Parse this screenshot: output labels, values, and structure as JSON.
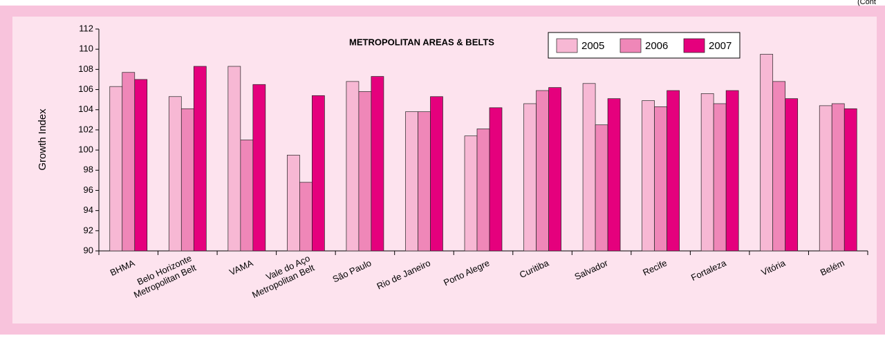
{
  "chart_data": {
    "type": "bar",
    "title": "METROPOLITAN AREAS & BELTS",
    "corner_note": "(Cont",
    "y_label": "Growth Index",
    "categories": [
      [
        "BHMA"
      ],
      [
        "Belo Horizonte",
        "Metropolitan Belt"
      ],
      [
        "VAMA"
      ],
      [
        "Vale do Aço",
        "Metropolitan Belt"
      ],
      [
        "São Paulo"
      ],
      [
        "Rio de Janeiro"
      ],
      [
        "Porto Alegre"
      ],
      [
        "Curitiba"
      ],
      [
        "Salvador"
      ],
      [
        "Recife"
      ],
      [
        "Fortaleza"
      ],
      [
        "Vitória"
      ],
      [
        "Belém"
      ]
    ],
    "series": [
      {
        "name": "2005",
        "color": "#f7b8d4",
        "values": [
          106.3,
          105.3,
          108.3,
          99.5,
          106.8,
          103.8,
          101.4,
          104.6,
          106.6,
          104.9,
          105.6,
          109.5,
          104.4
        ]
      },
      {
        "name": "2006",
        "color": "#ef87b8",
        "values": [
          107.7,
          104.1,
          101.0,
          96.8,
          105.8,
          103.8,
          102.1,
          105.9,
          102.5,
          104.3,
          104.6,
          106.8,
          104.6
        ]
      },
      {
        "name": "2007",
        "color": "#e5007d",
        "values": [
          107.0,
          108.3,
          106.5,
          105.4,
          107.3,
          105.3,
          104.2,
          106.2,
          105.1,
          105.9,
          105.9,
          105.1,
          104.1
        ]
      }
    ],
    "ylim": [
      90,
      112
    ],
    "yticks": [
      90,
      92,
      94,
      96,
      98,
      100,
      102,
      104,
      106,
      108,
      110,
      112
    ],
    "legend": "top-right"
  }
}
